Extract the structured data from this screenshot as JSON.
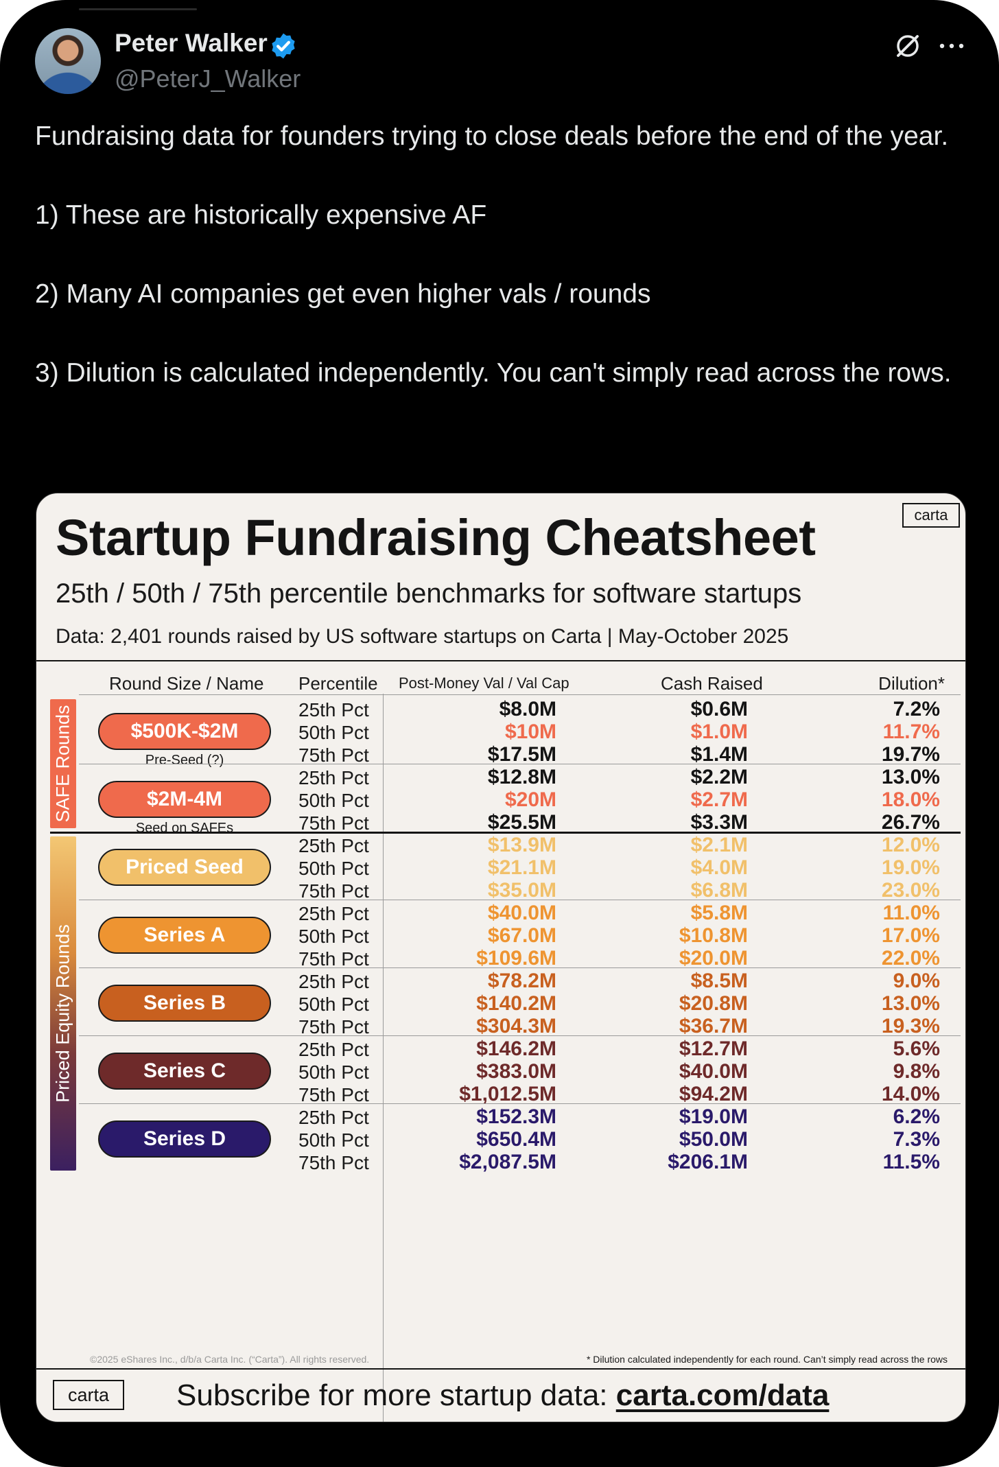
{
  "post": {
    "author_name": "Peter Walker",
    "author_handle": "@PeterJ_Walker",
    "verified_color": "#1d9bf0",
    "lines": {
      "p1": "Fundraising data for founders trying to close deals before the end of the year.",
      "p2": "1) These are historically expensive AF",
      "p3": "2) Many AI companies get even higher vals / rounds",
      "p4": "3) Dilution is calculated independently. You can't simply read across the rows."
    }
  },
  "card": {
    "title": "Startup Fundraising Cheatsheet",
    "logo": "carta",
    "subtitle": "25th / 50th / 75th percentile benchmarks for software startups",
    "source": "Data: 2,401 rounds raised by US software startups on Carta | May-October 2025",
    "columns": {
      "round": "Round Size / Name",
      "percentile": "Percentile",
      "post_money": "Post-Money Val / Val Cap",
      "cash": "Cash Raised",
      "dilution": "Dilution*"
    },
    "groups": {
      "safe": {
        "label": "SAFE Rounds",
        "color": "#ef6a4c"
      },
      "priced": {
        "label": "Priced Equity Rounds",
        "color_top": "#f3c774",
        "color_bottom": "#3b2060"
      }
    },
    "rounds": [
      {
        "name": "$500K-$2M",
        "sub": "Pre-Seed (?)",
        "color": "#ef6a4c",
        "highlight": "#ef6a4c",
        "rows": [
          {
            "pct": "25th Pct",
            "post": "$8.0M",
            "cash": "$0.6M",
            "dil": "7.2%"
          },
          {
            "pct": "50th Pct",
            "post": "$10M",
            "cash": "$1.0M",
            "dil": "11.7%"
          },
          {
            "pct": "75th Pct",
            "post": "$17.5M",
            "cash": "$1.4M",
            "dil": "19.7%"
          }
        ]
      },
      {
        "name": "$2M-4M",
        "sub": "Seed on SAFEs",
        "color": "#ef6a4c",
        "highlight": "#ef6a4c",
        "rows": [
          {
            "pct": "25th Pct",
            "post": "$12.8M",
            "cash": "$2.2M",
            "dil": "13.0%"
          },
          {
            "pct": "50th Pct",
            "post": "$20M",
            "cash": "$2.7M",
            "dil": "18.0%"
          },
          {
            "pct": "75th Pct",
            "post": "$25.5M",
            "cash": "$3.3M",
            "dil": "26.7%"
          }
        ]
      },
      {
        "name": "Priced Seed",
        "sub": "",
        "color": "#f1c06a",
        "highlight": "#f1c06a",
        "rows": [
          {
            "pct": "25th Pct",
            "post": "$13.9M",
            "cash": "$2.1M",
            "dil": "12.0%"
          },
          {
            "pct": "50th Pct",
            "post": "$21.1M",
            "cash": "$4.0M",
            "dil": "19.0%"
          },
          {
            "pct": "75th Pct",
            "post": "$35.0M",
            "cash": "$6.8M",
            "dil": "23.0%"
          }
        ]
      },
      {
        "name": "Series A",
        "sub": "",
        "color": "#ee9431",
        "highlight": "#ee9431",
        "rows": [
          {
            "pct": "25th Pct",
            "post": "$40.0M",
            "cash": "$5.8M",
            "dil": "11.0%"
          },
          {
            "pct": "50th Pct",
            "post": "$67.0M",
            "cash": "$10.8M",
            "dil": "17.0%"
          },
          {
            "pct": "75th Pct",
            "post": "$109.6M",
            "cash": "$20.0M",
            "dil": "22.0%"
          }
        ]
      },
      {
        "name": "Series B",
        "sub": "",
        "color": "#c8601f",
        "highlight": "#c8601f",
        "rows": [
          {
            "pct": "25th Pct",
            "post": "$78.2M",
            "cash": "$8.5M",
            "dil": "9.0%"
          },
          {
            "pct": "50th Pct",
            "post": "$140.2M",
            "cash": "$20.8M",
            "dil": "13.0%"
          },
          {
            "pct": "75th Pct",
            "post": "$304.3M",
            "cash": "$36.7M",
            "dil": "19.3%"
          }
        ]
      },
      {
        "name": "Series C",
        "sub": "",
        "color": "#6e2a2a",
        "highlight": "#6e2a2a",
        "rows": [
          {
            "pct": "25th Pct",
            "post": "$146.2M",
            "cash": "$12.7M",
            "dil": "5.6%"
          },
          {
            "pct": "50th Pct",
            "post": "$383.0M",
            "cash": "$40.0M",
            "dil": "9.8%"
          },
          {
            "pct": "75th Pct",
            "post": "$1,012.5M",
            "cash": "$94.2M",
            "dil": "14.0%"
          }
        ]
      },
      {
        "name": "Series D",
        "sub": "",
        "color": "#2a1a6a",
        "highlight": "#2a1a6a",
        "rows": [
          {
            "pct": "25th Pct",
            "post": "$152.3M",
            "cash": "$19.0M",
            "dil": "6.2%"
          },
          {
            "pct": "50th Pct",
            "post": "$650.4M",
            "cash": "$50.0M",
            "dil": "7.3%"
          },
          {
            "pct": "75th Pct",
            "post": "$2,087.5M",
            "cash": "$206.1M",
            "dil": "11.5%"
          }
        ]
      }
    ],
    "footer_copyright": "©2025 eShares Inc., d/b/a Carta Inc. (“Carta”). All rights reserved.",
    "footer_note": "* Dilution calculated independently for each round. Can’t simply read across the rows",
    "subscribe_text": "Subscribe for more startup data:",
    "subscribe_link": "carta.com/data"
  }
}
